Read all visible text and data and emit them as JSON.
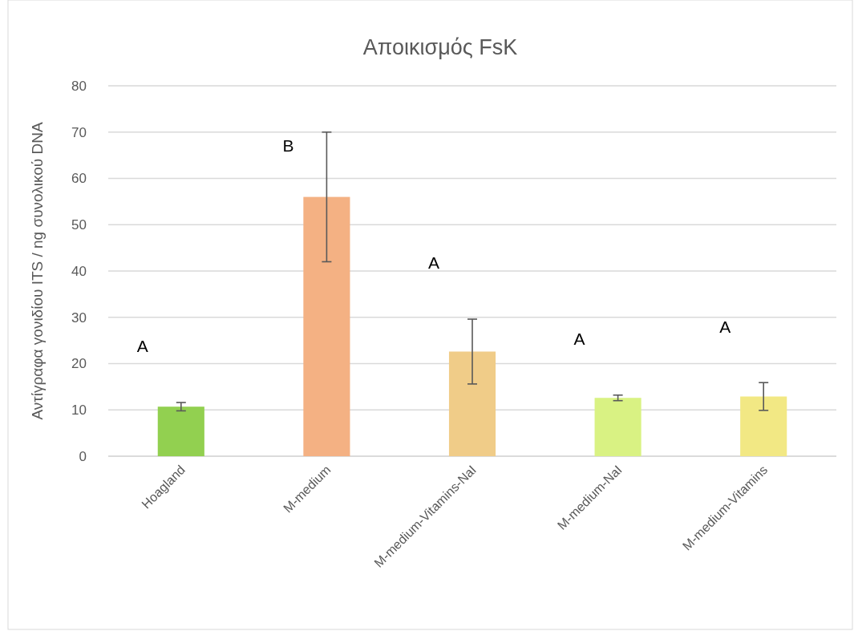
{
  "chart_data": {
    "type": "bar",
    "title": "Αποικισμός FsK",
    "ylabel": "Αντίγραφα γονιδίου ITS / ng συνολικού DNA",
    "categories": [
      "Hoagland",
      "M-medium",
      "M-medium-Vitamins-NaI",
      "M-medium-NaI",
      "M-medium-Vitamins"
    ],
    "values": [
      10.7,
      56,
      22.6,
      12.6,
      12.9
    ],
    "errors": [
      0.9,
      14,
      7,
      0.6,
      3
    ],
    "colors": [
      "#92d050",
      "#f4b183",
      "#f0cc88",
      "#d9f283",
      "#f2e884"
    ],
    "ylim": [
      0,
      80
    ],
    "yticks": [
      0,
      10,
      20,
      30,
      40,
      50,
      60,
      70,
      80
    ],
    "grid": "y",
    "annotations": [
      "A",
      "B",
      "A",
      "A",
      "A"
    ]
  }
}
